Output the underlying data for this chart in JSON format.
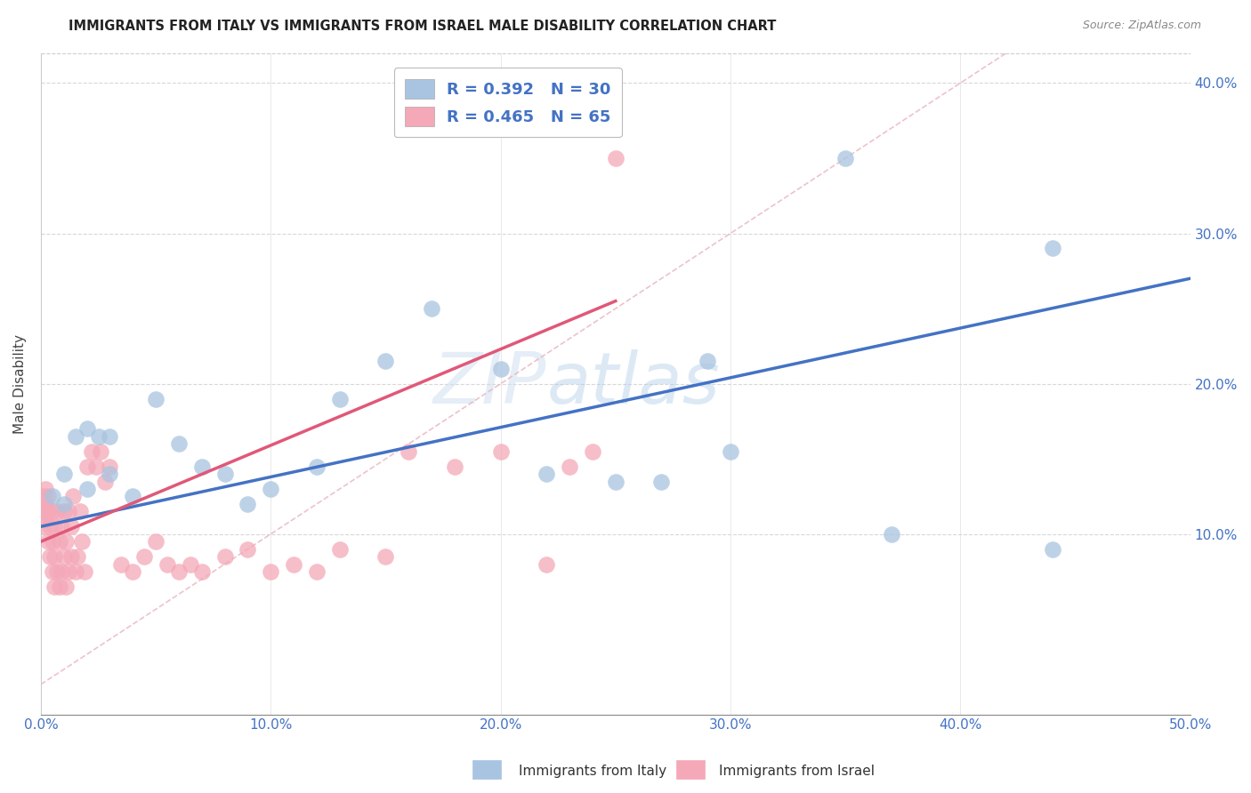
{
  "title": "IMMIGRANTS FROM ITALY VS IMMIGRANTS FROM ISRAEL MALE DISABILITY CORRELATION CHART",
  "source": "Source: ZipAtlas.com",
  "ylabel": "Male Disability",
  "xlim": [
    0.0,
    0.5
  ],
  "ylim": [
    -0.02,
    0.42
  ],
  "xticks": [
    0.0,
    0.1,
    0.2,
    0.3,
    0.4,
    0.5
  ],
  "yticks": [
    0.1,
    0.2,
    0.3,
    0.4
  ],
  "xticklabels": [
    "0.0%",
    "10.0%",
    "20.0%",
    "30.0%",
    "40.0%",
    "50.0%"
  ],
  "yticklabels": [
    "10.0%",
    "20.0%",
    "30.0%",
    "40.0%"
  ],
  "italy_R": 0.392,
  "italy_N": 30,
  "israel_R": 0.465,
  "israel_N": 65,
  "italy_color": "#a8c4e0",
  "israel_color": "#f4a8b8",
  "italy_line_color": "#4472c4",
  "israel_line_color": "#e05878",
  "diagonal_color": "#e8b4bc",
  "watermark": "ZIPatlas",
  "italy_scatter_x": [
    0.005,
    0.01,
    0.01,
    0.015,
    0.02,
    0.02,
    0.025,
    0.03,
    0.03,
    0.04,
    0.05,
    0.06,
    0.07,
    0.08,
    0.09,
    0.1,
    0.12,
    0.13,
    0.15,
    0.17,
    0.2,
    0.22,
    0.25,
    0.27,
    0.29,
    0.3,
    0.35,
    0.37,
    0.44,
    0.44
  ],
  "italy_scatter_y": [
    0.125,
    0.14,
    0.12,
    0.165,
    0.17,
    0.13,
    0.165,
    0.165,
    0.14,
    0.125,
    0.19,
    0.16,
    0.145,
    0.14,
    0.12,
    0.13,
    0.145,
    0.19,
    0.215,
    0.25,
    0.21,
    0.14,
    0.135,
    0.135,
    0.215,
    0.155,
    0.35,
    0.1,
    0.09,
    0.29
  ],
  "israel_scatter_x": [
    0.001,
    0.001,
    0.001,
    0.002,
    0.002,
    0.002,
    0.003,
    0.003,
    0.003,
    0.004,
    0.004,
    0.005,
    0.005,
    0.005,
    0.006,
    0.006,
    0.006,
    0.007,
    0.007,
    0.008,
    0.008,
    0.009,
    0.009,
    0.01,
    0.01,
    0.011,
    0.011,
    0.012,
    0.012,
    0.013,
    0.013,
    0.014,
    0.015,
    0.016,
    0.017,
    0.018,
    0.019,
    0.02,
    0.022,
    0.024,
    0.026,
    0.028,
    0.03,
    0.035,
    0.04,
    0.045,
    0.05,
    0.055,
    0.06,
    0.065,
    0.07,
    0.08,
    0.09,
    0.1,
    0.11,
    0.12,
    0.13,
    0.15,
    0.16,
    0.18,
    0.2,
    0.22,
    0.23,
    0.24,
    0.25
  ],
  "israel_scatter_y": [
    0.125,
    0.115,
    0.105,
    0.13,
    0.12,
    0.11,
    0.095,
    0.125,
    0.115,
    0.085,
    0.105,
    0.075,
    0.115,
    0.095,
    0.065,
    0.085,
    0.105,
    0.075,
    0.115,
    0.095,
    0.065,
    0.075,
    0.105,
    0.085,
    0.115,
    0.065,
    0.095,
    0.075,
    0.115,
    0.085,
    0.105,
    0.125,
    0.075,
    0.085,
    0.115,
    0.095,
    0.075,
    0.145,
    0.155,
    0.145,
    0.155,
    0.135,
    0.145,
    0.08,
    0.075,
    0.085,
    0.095,
    0.08,
    0.075,
    0.08,
    0.075,
    0.085,
    0.09,
    0.075,
    0.08,
    0.075,
    0.09,
    0.085,
    0.155,
    0.145,
    0.155,
    0.08,
    0.145,
    0.155,
    0.35
  ],
  "italy_line_x": [
    0.0,
    0.5
  ],
  "italy_line_y": [
    0.105,
    0.27
  ],
  "israel_line_x": [
    0.0,
    0.25
  ],
  "israel_line_y": [
    0.095,
    0.255
  ]
}
